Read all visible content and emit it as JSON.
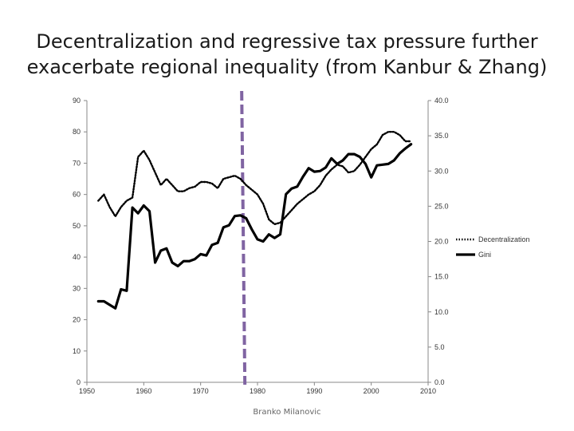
{
  "title_lines": [
    "Decentralization and regressive tax pressure further",
    "exacerbate regional inequality (from Kanbur & Zhang)"
  ],
  "credit": "Branko Milanovic",
  "chart_data": {
    "type": "line",
    "title": "Decentralization and regressive tax pressure further exacerbate regional inequality (from Kanbur & Zhang)",
    "x_ticks": [
      1950,
      1960,
      1970,
      1980,
      1990,
      2000,
      2010
    ],
    "xlim": [
      1950,
      2010
    ],
    "y_left_ticks": [
      "0",
      "10",
      "20",
      "30",
      "40",
      "50",
      "60",
      "70",
      "80",
      "90"
    ],
    "ylim_left": [
      0,
      90
    ],
    "y_right_ticks": [
      "0.0",
      "5.0",
      "10.0",
      "15.0",
      "20.0",
      "25.0",
      "30.0",
      "35.0",
      "40.0"
    ],
    "ylim_right": [
      0,
      40
    ],
    "grid": false,
    "legend_position": "right",
    "marker_line": {
      "x": 1977.5,
      "color": "#8064a2",
      "style": "dashed"
    },
    "series": [
      {
        "name": "Decentralization",
        "axis": "left",
        "style": "dotted",
        "color": "#000000",
        "x": [
          1952,
          1953,
          1954,
          1955,
          1956,
          1957,
          1958,
          1959,
          1960,
          1961,
          1962,
          1963,
          1964,
          1965,
          1966,
          1967,
          1968,
          1969,
          1970,
          1971,
          1972,
          1973,
          1974,
          1975,
          1976,
          1977,
          1978,
          1979,
          1980,
          1981,
          1982,
          1983,
          1984,
          1985,
          1986,
          1987,
          1988,
          1989,
          1990,
          1991,
          1992,
          1993,
          1994,
          1995,
          1996,
          1997,
          1998,
          1999,
          2000,
          2001,
          2002,
          2003,
          2004,
          2005,
          2006,
          2007
        ],
        "y": [
          58,
          60,
          56,
          53,
          56,
          58,
          59,
          72,
          74,
          71,
          67,
          63,
          65,
          63,
          61,
          61,
          62,
          62.5,
          64,
          64,
          63.5,
          62,
          65,
          65.5,
          66,
          65,
          63,
          61.5,
          60,
          57,
          52,
          50.5,
          51,
          53,
          55,
          57,
          58.5,
          60,
          61,
          63,
          66,
          68,
          69.5,
          69,
          67,
          67.5,
          69.5,
          72,
          74.5,
          76,
          79,
          80,
          80,
          79,
          77,
          77
        ]
      },
      {
        "name": "Gini",
        "axis": "right",
        "style": "solid",
        "color": "#000000",
        "x": [
          1952,
          1953,
          1954,
          1955,
          1956,
          1957,
          1958,
          1959,
          1960,
          1961,
          1962,
          1963,
          1964,
          1965,
          1966,
          1967,
          1968,
          1969,
          1970,
          1971,
          1972,
          1973,
          1974,
          1975,
          1976,
          1977,
          1978,
          1979,
          1980,
          1981,
          1982,
          1983,
          1984,
          1985,
          1986,
          1987,
          1988,
          1989,
          1990,
          1991,
          1992,
          1993,
          1994,
          1995,
          1996,
          1997,
          1998,
          1999,
          2000,
          2001,
          2002,
          2003,
          2004,
          2005,
          2006,
          2007
        ],
        "y": [
          11.5,
          11.5,
          11,
          10.5,
          13.2,
          13,
          24.8,
          24,
          25.1,
          24.3,
          17,
          18.7,
          19,
          17,
          16.5,
          17.2,
          17.2,
          17.5,
          18.2,
          18,
          19.5,
          19.8,
          22,
          22.3,
          23.6,
          23.7,
          23.3,
          21.7,
          20.3,
          20,
          21,
          20.5,
          21,
          26.7,
          27.5,
          27.8,
          29.2,
          30.4,
          29.9,
          30,
          30.5,
          31.8,
          31,
          31.5,
          32.4,
          32.4,
          32,
          31,
          29.1,
          30.8,
          30.9,
          31,
          31.5,
          32.5,
          33.2,
          33.8
        ]
      }
    ],
    "legend": [
      "Decentralization",
      "Gini"
    ]
  }
}
